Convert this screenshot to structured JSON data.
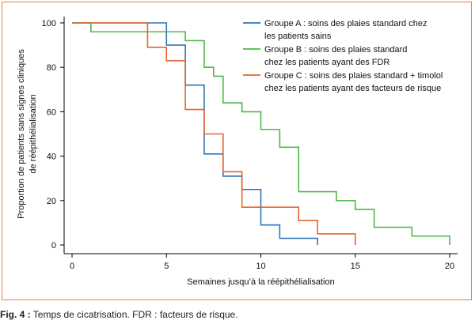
{
  "figure": {
    "caption_label": "Fig. 4 :",
    "caption_text": " Temps de cicatrisation. FDR : facteurs de risque."
  },
  "chart_data": {
    "type": "line",
    "xlabel": "Semaines jusqu’à la réépithélialisation",
    "ylabel_lines": [
      "Proportion de patients sans signes cliniques",
      "de réépithélialisation"
    ],
    "xlim": [
      0,
      20
    ],
    "ylim": [
      0,
      100
    ],
    "xticks": [
      0,
      5,
      10,
      15,
      20
    ],
    "yticks": [
      0,
      20,
      40,
      60,
      80,
      100
    ],
    "grid": false,
    "legend_position": "top-right",
    "series": [
      {
        "name": "Groupe A : soins des plaies standard chez les patients sains",
        "legend_lines": [
          "Groupe A : soins des plaies standard chez",
          "les patients sains"
        ],
        "color": "#2E75B6",
        "step_x": [
          0,
          5,
          6,
          7,
          8,
          9,
          10,
          11,
          13
        ],
        "step_y": [
          100,
          90,
          72,
          41,
          31,
          25,
          9,
          3,
          0
        ]
      },
      {
        "name": "Groupe B : soins des plaies standard chez les patients ayant des FDR",
        "legend_lines": [
          "Groupe B : soins des plaies standard",
          "chez les patients ayant des FDR"
        ],
        "color": "#4DB848",
        "step_x": [
          0,
          1,
          6,
          7,
          7.5,
          8,
          9,
          10,
          11,
          12,
          14,
          15,
          16,
          18,
          20
        ],
        "step_y": [
          100,
          96,
          92,
          80,
          76,
          64,
          60,
          52,
          44,
          24,
          20,
          16,
          8,
          4,
          0
        ]
      },
      {
        "name": "Groupe C : soins des plaies standard + timolol chez les patients ayant des facteurs de risque",
        "legend_lines": [
          "Groupe C : soins des plaies standard + timolol",
          "chez les patients ayant des facteurs de risque"
        ],
        "color": "#E8642B",
        "step_x": [
          0,
          4,
          5,
          6,
          7,
          8,
          9,
          12,
          13,
          15
        ],
        "step_y": [
          100,
          89,
          83,
          61,
          50,
          33,
          17,
          11,
          5,
          0
        ]
      }
    ]
  }
}
